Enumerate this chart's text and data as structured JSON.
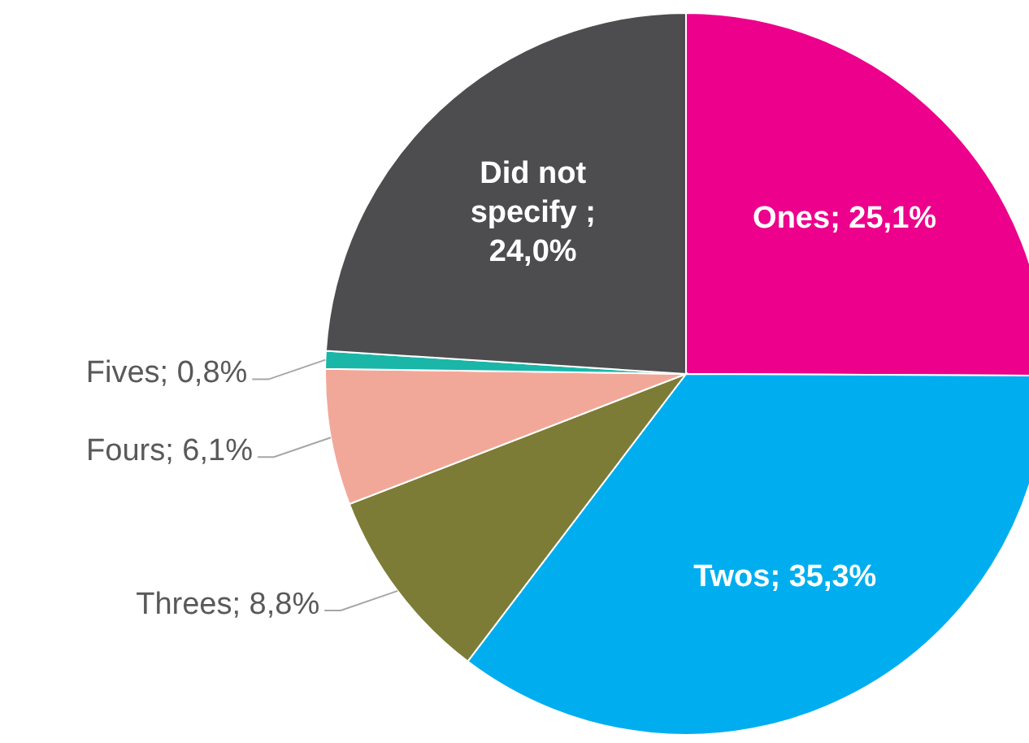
{
  "chart_data": {
    "type": "pie",
    "categories": [
      "Ones; 25,1%",
      "Twos; 35,3%",
      "Threes; 8,8%",
      "Fours; 6,1%",
      "Fives; 0,8%",
      "Did not specify ; 24,0%"
    ],
    "values": [
      25.1,
      35.3,
      8.8,
      6.1,
      0.8,
      24.0
    ],
    "colors": [
      "#ec008c",
      "#00aeef",
      "#7d7c37",
      "#f2a899",
      "#1ab6a8",
      "#4d4d4f"
    ]
  }
}
